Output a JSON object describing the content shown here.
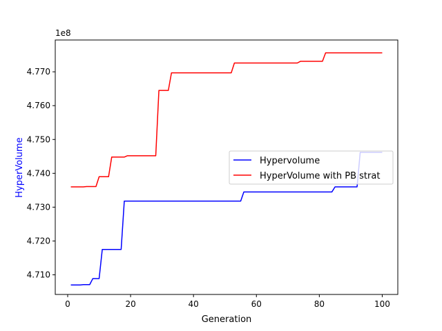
{
  "chart_data": {
    "type": "line",
    "xlabel": "Generation",
    "ylabel": "HyperVolume",
    "ylabel_color": "#0000ff",
    "offset_text": "1e8",
    "xlim": [
      -3.95,
      104.95
    ],
    "ylim": [
      4.7042,
      4.7794
    ],
    "xticks": [
      0,
      20,
      40,
      60,
      80,
      100
    ],
    "xtick_labels": [
      "0",
      "20",
      "40",
      "60",
      "80",
      "100"
    ],
    "yticks": [
      4.71,
      4.72,
      4.73,
      4.74,
      4.75,
      4.76,
      4.77
    ],
    "ytick_labels": [
      "4.710",
      "4.720",
      "4.730",
      "4.740",
      "4.750",
      "4.760",
      "4.770"
    ],
    "legend_placement": "center-right",
    "grid": false,
    "series": [
      {
        "name": "Hypervolume",
        "color": "#0000ff",
        "x": [
          1,
          4,
          5,
          7,
          8,
          9,
          10,
          11,
          17,
          18,
          55,
          56,
          84,
          85,
          92,
          93,
          100
        ],
        "y": [
          4.707,
          4.707,
          4.7071,
          4.7071,
          4.7089,
          4.7089,
          4.7089,
          4.7175,
          4.7175,
          4.7318,
          4.7318,
          4.7345,
          4.7345,
          4.736,
          4.736,
          4.7462,
          4.7462
        ]
      },
      {
        "name": "HyperVolume with PB strat",
        "color": "#ff0000",
        "x": [
          1,
          5,
          6,
          9,
          10,
          13,
          14,
          18,
          19,
          28,
          29,
          32,
          33,
          52,
          53,
          73,
          74,
          81,
          82,
          100
        ],
        "y": [
          4.736,
          4.736,
          4.7361,
          4.7361,
          4.739,
          4.739,
          4.7448,
          4.7448,
          4.7452,
          4.7452,
          4.7645,
          4.7645,
          4.7697,
          4.7697,
          4.7726,
          4.7726,
          4.7731,
          4.7731,
          4.7756,
          4.7756
        ]
      }
    ]
  }
}
